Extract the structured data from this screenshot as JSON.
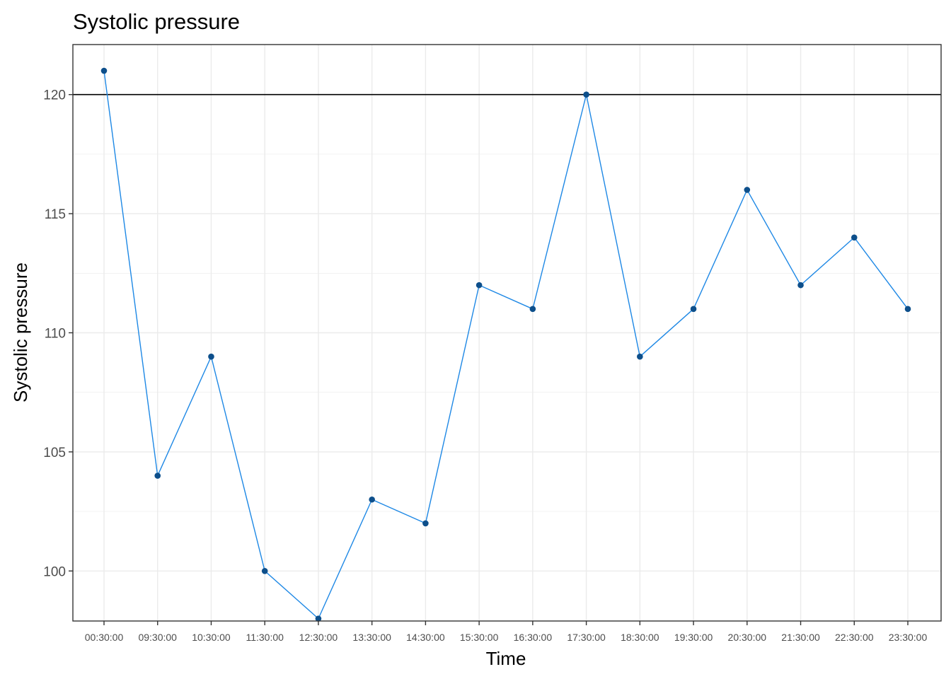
{
  "chart_data": {
    "type": "line",
    "title": "Systolic pressure",
    "xlabel": "Time",
    "ylabel": "Systolic pressure",
    "categories": [
      "00:30:00",
      "09:30:00",
      "10:30:00",
      "11:30:00",
      "12:30:00",
      "13:30:00",
      "14:30:00",
      "15:30:00",
      "16:30:00",
      "17:30:00",
      "18:30:00",
      "19:30:00",
      "20:30:00",
      "21:30:00",
      "22:30:00",
      "23:30:00"
    ],
    "series": [
      {
        "values": [
          121,
          104,
          109,
          100,
          98,
          103,
          102,
          112,
          111,
          120,
          109,
          111,
          116,
          112,
          114,
          111
        ]
      }
    ],
    "ylim": [
      97.9,
      122.1
    ],
    "yticks": [
      100,
      105,
      110,
      115,
      120
    ],
    "reference_line": {
      "y": 120
    },
    "grid": true,
    "colors": {
      "line": "#1e88e5",
      "point": "#0d4f8b",
      "reference": "#000000",
      "grid": "#ebebeb",
      "panel_border": "#333333"
    }
  }
}
